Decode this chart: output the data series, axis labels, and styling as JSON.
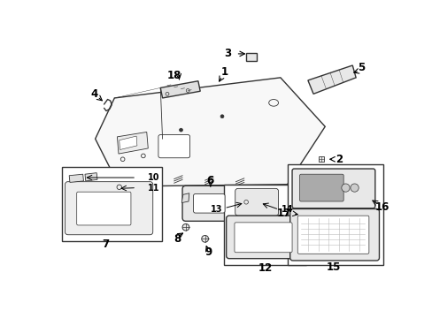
{
  "bg_color": "#ffffff",
  "fig_width": 4.89,
  "fig_height": 3.6,
  "dpi": 100,
  "line_color": "#333333",
  "lw_main": 1.0,
  "lw_thin": 0.6,
  "label_fs": 8.5
}
